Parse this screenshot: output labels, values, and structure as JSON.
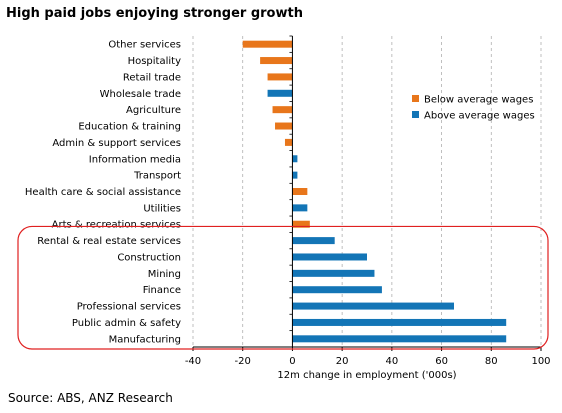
{
  "chart_data": {
    "type": "bar",
    "orientation": "horizontal",
    "title": "High paid jobs enjoying stronger growth",
    "xlabel": "12m change in employment ('000s)",
    "ylabel": "",
    "xlim": [
      -40,
      100
    ],
    "xticks": [
      "-40",
      "-20",
      "0",
      "20",
      "40",
      "60",
      "80",
      "100"
    ],
    "grid": "vertical dashed",
    "legend_position": "right",
    "legend": [
      {
        "label": "Below average wages",
        "color": "#E8761B"
      },
      {
        "label": "Above average wages",
        "color": "#1375B6"
      }
    ],
    "categories": [
      "Other services",
      "Hospitality",
      "Retail trade",
      "Wholesale trade",
      "Agriculture",
      "Education & training",
      "Admin & support services",
      "Information media",
      "Transport",
      "Health care & social assistance",
      "Utilities",
      "Arts & recreation services",
      "Rental & real estate services",
      "Construction",
      "Mining",
      "Finance",
      "Professional services",
      "Public admin & safety",
      "Manufacturing"
    ],
    "values": [
      -20,
      -13,
      -10,
      -10,
      -8,
      -7,
      -3,
      2,
      2,
      6,
      6,
      7,
      17,
      30,
      33,
      36,
      65,
      86,
      86
    ],
    "groups": [
      "below",
      "below",
      "below",
      "above",
      "below",
      "below",
      "below",
      "above",
      "above",
      "below",
      "above",
      "below",
      "above",
      "above",
      "above",
      "above",
      "above",
      "above",
      "above"
    ],
    "highlight": {
      "from": "Rental & real estate services",
      "to": "Manufacturing",
      "color": "#E02020"
    }
  },
  "source": "Source: ABS, ANZ Research"
}
